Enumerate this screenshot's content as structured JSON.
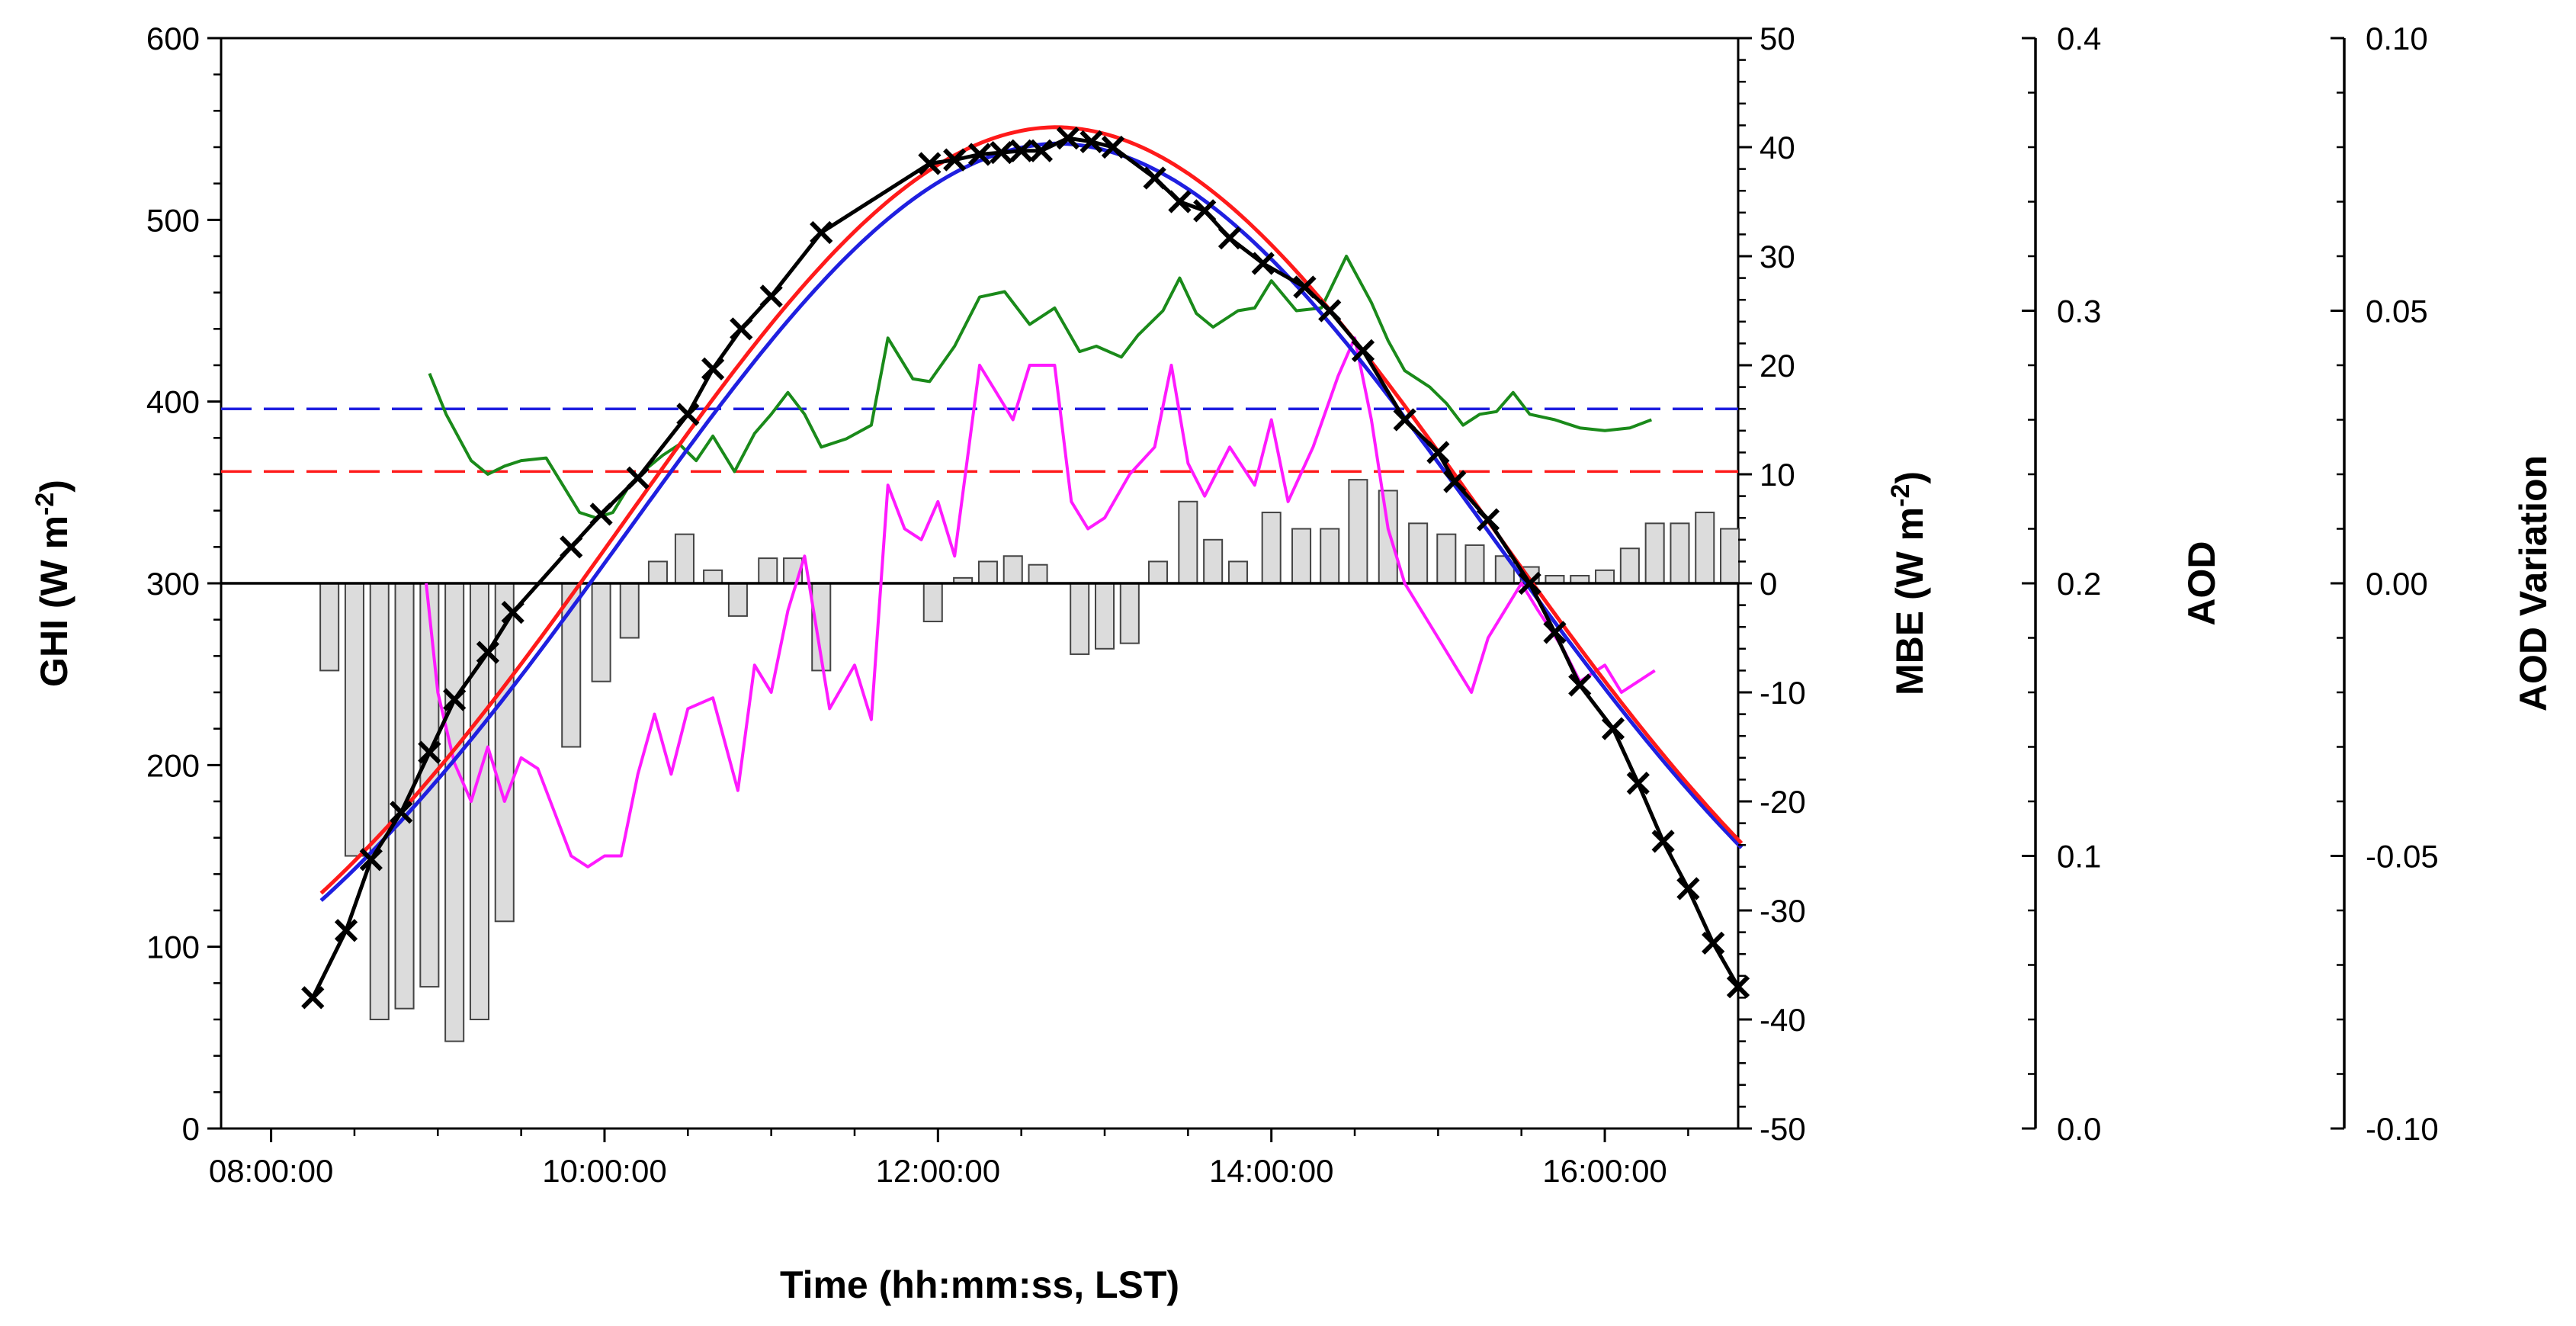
{
  "chart_data": {
    "type": "combo-line-bar",
    "xlabel": "Time (hh:mm:ss, LST)",
    "x_range_hours": [
      7.7,
      16.8
    ],
    "x_ticks": [
      {
        "h": 8,
        "label": "08:00:00"
      },
      {
        "h": 10,
        "label": "10:00:00"
      },
      {
        "h": 12,
        "label": "12:00:00"
      },
      {
        "h": 14,
        "label": "14:00:00"
      },
      {
        "h": 16,
        "label": "16:00:00"
      }
    ],
    "axes": {
      "ghi": {
        "title": "GHI (W m",
        "sup": "-2",
        "close": ")",
        "ylim": [
          0,
          600
        ],
        "ticks": [
          "0",
          "100",
          "200",
          "300",
          "400",
          "500",
          "600"
        ],
        "tick_values": [
          0,
          100,
          200,
          300,
          400,
          500,
          600
        ]
      },
      "mbe": {
        "title": "MBE (W m",
        "sup": "-2",
        "close": ")",
        "ylim": [
          -50,
          50
        ],
        "ticks": [
          "-50",
          "-40",
          "-30",
          "-20",
          "-10",
          "0",
          "10",
          "20",
          "30",
          "40",
          "50"
        ],
        "tick_values": [
          -50,
          -40,
          -30,
          -20,
          -10,
          0,
          10,
          20,
          30,
          40,
          50
        ]
      },
      "aod": {
        "title": "AOD",
        "ylim": [
          0.0,
          0.4
        ],
        "ticks": [
          "0.0",
          "0.1",
          "0.2",
          "0.3",
          "0.4"
        ],
        "tick_values": [
          0.0,
          0.1,
          0.2,
          0.3,
          0.4
        ]
      },
      "aod_var": {
        "title": "AOD Variation",
        "ylim": [
          -0.1,
          0.1
        ],
        "ticks": [
          "-0.10",
          "-0.05",
          "0.00",
          "0.05",
          "0.10"
        ],
        "tick_values": [
          -0.1,
          -0.05,
          0.0,
          0.05,
          0.1
        ]
      }
    },
    "colors": {
      "black": "#000000",
      "blue": "#1f1fe0",
      "red": "#ff1a1a",
      "green": "#1a8a1a",
      "magenta": "#ff1aff",
      "bar_fill": "#dcdcdc",
      "bar_stroke": "#444444"
    },
    "ghi_model": {
      "peak_h": 12.7,
      "sigma_h": 2.6,
      "min_h": 8.3,
      "max_h": 16.85,
      "black_amp": 545,
      "blue_amp": 542,
      "red_amp": 551,
      "black_early_offset": 15,
      "blue_early_offset": -15,
      "red_early_offset": -8
    },
    "measured_x_points": [
      {
        "h": 8.25,
        "v": 72
      },
      {
        "h": 8.45,
        "v": 109
      },
      {
        "h": 8.6,
        "v": 148
      },
      {
        "h": 8.78,
        "v": 174
      },
      {
        "h": 8.95,
        "v": 207
      },
      {
        "h": 9.1,
        "v": 236
      },
      {
        "h": 9.3,
        "v": 262
      },
      {
        "h": 9.45,
        "v": 284
      },
      {
        "h": 9.8,
        "v": 320
      },
      {
        "h": 9.98,
        "v": 338
      },
      {
        "h": 10.2,
        "v": 358
      },
      {
        "h": 10.5,
        "v": 393
      },
      {
        "h": 10.65,
        "v": 418
      },
      {
        "h": 10.82,
        "v": 440
      },
      {
        "h": 11.0,
        "v": 458
      },
      {
        "h": 11.3,
        "v": 493
      },
      {
        "h": 11.95,
        "v": 531
      },
      {
        "h": 12.1,
        "v": 533
      },
      {
        "h": 12.25,
        "v": 536
      },
      {
        "h": 12.38,
        "v": 537
      },
      {
        "h": 12.5,
        "v": 538
      },
      {
        "h": 12.62,
        "v": 538
      },
      {
        "h": 12.78,
        "v": 545
      },
      {
        "h": 12.92,
        "v": 543
      },
      {
        "h": 13.05,
        "v": 540
      },
      {
        "h": 13.3,
        "v": 523
      },
      {
        "h": 13.45,
        "v": 510
      },
      {
        "h": 13.6,
        "v": 505
      },
      {
        "h": 13.75,
        "v": 490
      },
      {
        "h": 13.95,
        "v": 476
      },
      {
        "h": 14.2,
        "v": 463
      },
      {
        "h": 14.35,
        "v": 450
      },
      {
        "h": 14.55,
        "v": 428
      },
      {
        "h": 14.8,
        "v": 390
      },
      {
        "h": 15.0,
        "v": 372
      },
      {
        "h": 15.1,
        "v": 356
      },
      {
        "h": 15.3,
        "v": 335
      },
      {
        "h": 15.55,
        "v": 300
      },
      {
        "h": 15.7,
        "v": 273
      },
      {
        "h": 15.85,
        "v": 244
      },
      {
        "h": 16.05,
        "v": 220
      },
      {
        "h": 16.2,
        "v": 190
      },
      {
        "h": 16.35,
        "v": 158
      },
      {
        "h": 16.5,
        "v": 132
      },
      {
        "h": 16.65,
        "v": 102
      },
      {
        "h": 16.8,
        "v": 78
      }
    ],
    "mbe_bars": {
      "bar_width_h": 0.11,
      "items": [
        {
          "h": 8.35,
          "v": -8
        },
        {
          "h": 8.5,
          "v": -25
        },
        {
          "h": 8.65,
          "v": -40
        },
        {
          "h": 8.8,
          "v": -39
        },
        {
          "h": 8.95,
          "v": -37
        },
        {
          "h": 9.1,
          "v": -42
        },
        {
          "h": 9.25,
          "v": -40
        },
        {
          "h": 9.4,
          "v": -31
        },
        {
          "h": 9.8,
          "v": -15
        },
        {
          "h": 9.98,
          "v": -9
        },
        {
          "h": 10.15,
          "v": -5
        },
        {
          "h": 10.32,
          "v": 2
        },
        {
          "h": 10.48,
          "v": 4.5
        },
        {
          "h": 10.65,
          "v": 1.2
        },
        {
          "h": 10.8,
          "v": -3
        },
        {
          "h": 10.98,
          "v": 2.3
        },
        {
          "h": 11.13,
          "v": 2.3
        },
        {
          "h": 11.3,
          "v": -8
        },
        {
          "h": 11.97,
          "v": -3.5
        },
        {
          "h": 12.15,
          "v": 0.5
        },
        {
          "h": 12.3,
          "v": 2
        },
        {
          "h": 12.45,
          "v": 2.5
        },
        {
          "h": 12.6,
          "v": 1.7
        },
        {
          "h": 12.85,
          "v": -6.5
        },
        {
          "h": 13.0,
          "v": -6
        },
        {
          "h": 13.15,
          "v": -5.5
        },
        {
          "h": 13.32,
          "v": 2
        },
        {
          "h": 13.5,
          "v": 7.5
        },
        {
          "h": 13.65,
          "v": 4
        },
        {
          "h": 13.8,
          "v": 2
        },
        {
          "h": 14.0,
          "v": 6.5
        },
        {
          "h": 14.18,
          "v": 5
        },
        {
          "h": 14.35,
          "v": 5
        },
        {
          "h": 14.52,
          "v": 9.5
        },
        {
          "h": 14.7,
          "v": 8.5
        },
        {
          "h": 14.88,
          "v": 5.5
        },
        {
          "h": 15.05,
          "v": 4.5
        },
        {
          "h": 15.22,
          "v": 3.5
        },
        {
          "h": 15.4,
          "v": 2.5
        },
        {
          "h": 15.55,
          "v": 1.5
        },
        {
          "h": 15.7,
          "v": 0.7
        },
        {
          "h": 15.85,
          "v": 0.7
        },
        {
          "h": 16.0,
          "v": 1.2
        },
        {
          "h": 16.15,
          "v": 3.2
        },
        {
          "h": 16.3,
          "v": 5.5
        },
        {
          "h": 16.45,
          "v": 5.5
        },
        {
          "h": 16.6,
          "v": 6.5
        },
        {
          "h": 16.75,
          "v": 5
        }
      ]
    },
    "aod_dashed": {
      "blue": 0.264,
      "red": 0.241
    },
    "aod_green": [
      [
        8.95,
        0.277
      ],
      [
        9.05,
        0.262
      ],
      [
        9.2,
        0.245
      ],
      [
        9.3,
        0.24
      ],
      [
        9.4,
        0.243
      ],
      [
        9.5,
        0.245
      ],
      [
        9.65,
        0.246
      ],
      [
        9.75,
        0.236
      ],
      [
        9.85,
        0.226
      ],
      [
        9.95,
        0.224
      ],
      [
        10.05,
        0.226
      ],
      [
        10.15,
        0.236
      ],
      [
        10.25,
        0.242
      ],
      [
        10.35,
        0.247
      ],
      [
        10.45,
        0.251
      ],
      [
        10.55,
        0.245
      ],
      [
        10.65,
        0.254
      ],
      [
        10.78,
        0.241
      ],
      [
        10.9,
        0.255
      ],
      [
        11.0,
        0.262
      ],
      [
        11.1,
        0.27
      ],
      [
        11.2,
        0.262
      ],
      [
        11.3,
        0.25
      ],
      [
        11.45,
        0.253
      ],
      [
        11.6,
        0.258
      ],
      [
        11.7,
        0.29
      ],
      [
        11.85,
        0.275
      ],
      [
        11.95,
        0.274
      ],
      [
        12.1,
        0.287
      ],
      [
        12.25,
        0.305
      ],
      [
        12.4,
        0.307
      ],
      [
        12.55,
        0.295
      ],
      [
        12.7,
        0.301
      ],
      [
        12.85,
        0.285
      ],
      [
        12.95,
        0.287
      ],
      [
        13.1,
        0.283
      ],
      [
        13.2,
        0.291
      ],
      [
        13.35,
        0.3
      ],
      [
        13.45,
        0.312
      ],
      [
        13.55,
        0.299
      ],
      [
        13.65,
        0.294
      ],
      [
        13.8,
        0.3
      ],
      [
        13.9,
        0.301
      ],
      [
        14.0,
        0.311
      ],
      [
        14.15,
        0.3
      ],
      [
        14.3,
        0.301
      ],
      [
        14.45,
        0.32
      ],
      [
        14.6,
        0.303
      ],
      [
        14.7,
        0.289
      ],
      [
        14.8,
        0.278
      ],
      [
        14.95,
        0.272
      ],
      [
        15.05,
        0.266
      ],
      [
        15.15,
        0.258
      ],
      [
        15.25,
        0.262
      ],
      [
        15.35,
        0.263
      ],
      [
        15.45,
        0.27
      ],
      [
        15.55,
        0.262
      ],
      [
        15.7,
        0.26
      ],
      [
        15.85,
        0.257
      ],
      [
        16.0,
        0.256
      ],
      [
        16.15,
        0.257
      ],
      [
        16.28,
        0.26
      ]
    ],
    "aod_var_magenta": [
      [
        8.93,
        0.0
      ],
      [
        9.0,
        -0.02
      ],
      [
        9.1,
        -0.033
      ],
      [
        9.2,
        -0.04
      ],
      [
        9.3,
        -0.03
      ],
      [
        9.4,
        -0.04
      ],
      [
        9.5,
        -0.032
      ],
      [
        9.6,
        -0.034
      ],
      [
        9.7,
        -0.042
      ],
      [
        9.8,
        -0.05
      ],
      [
        9.9,
        -0.052
      ],
      [
        10.0,
        -0.05
      ],
      [
        10.1,
        -0.05
      ],
      [
        10.2,
        -0.035
      ],
      [
        10.3,
        -0.024
      ],
      [
        10.4,
        -0.035
      ],
      [
        10.5,
        -0.023
      ],
      [
        10.65,
        -0.021
      ],
      [
        10.8,
        -0.038
      ],
      [
        10.9,
        -0.015
      ],
      [
        11.0,
        -0.02
      ],
      [
        11.1,
        -0.005
      ],
      [
        11.2,
        0.005
      ],
      [
        11.35,
        -0.023
      ],
      [
        11.5,
        -0.015
      ],
      [
        11.6,
        -0.025
      ],
      [
        11.7,
        0.018
      ],
      [
        11.8,
        0.01
      ],
      [
        11.9,
        0.008
      ],
      [
        12.0,
        0.015
      ],
      [
        12.1,
        0.005
      ],
      [
        12.25,
        0.04
      ],
      [
        12.35,
        0.035
      ],
      [
        12.45,
        0.03
      ],
      [
        12.55,
        0.04
      ],
      [
        12.7,
        0.04
      ],
      [
        12.8,
        0.015
      ],
      [
        12.9,
        0.01
      ],
      [
        13.0,
        0.012
      ],
      [
        13.15,
        0.02
      ],
      [
        13.3,
        0.025
      ],
      [
        13.4,
        0.04
      ],
      [
        13.5,
        0.022
      ],
      [
        13.6,
        0.016
      ],
      [
        13.75,
        0.025
      ],
      [
        13.9,
        0.018
      ],
      [
        14.0,
        0.03
      ],
      [
        14.1,
        0.015
      ],
      [
        14.25,
        0.025
      ],
      [
        14.4,
        0.038
      ],
      [
        14.5,
        0.045
      ],
      [
        14.6,
        0.03
      ],
      [
        14.7,
        0.01
      ],
      [
        14.8,
        0.0
      ],
      [
        14.9,
        -0.005
      ],
      [
        15.0,
        -0.01
      ],
      [
        15.1,
        -0.015
      ],
      [
        15.2,
        -0.02
      ],
      [
        15.3,
        -0.01
      ],
      [
        15.4,
        -0.005
      ],
      [
        15.5,
        0.0
      ],
      [
        15.6,
        -0.005
      ],
      [
        15.75,
        -0.012
      ],
      [
        15.85,
        -0.018
      ],
      [
        16.0,
        -0.015
      ],
      [
        16.1,
        -0.02
      ],
      [
        16.2,
        -0.018
      ],
      [
        16.3,
        -0.016
      ]
    ]
  }
}
